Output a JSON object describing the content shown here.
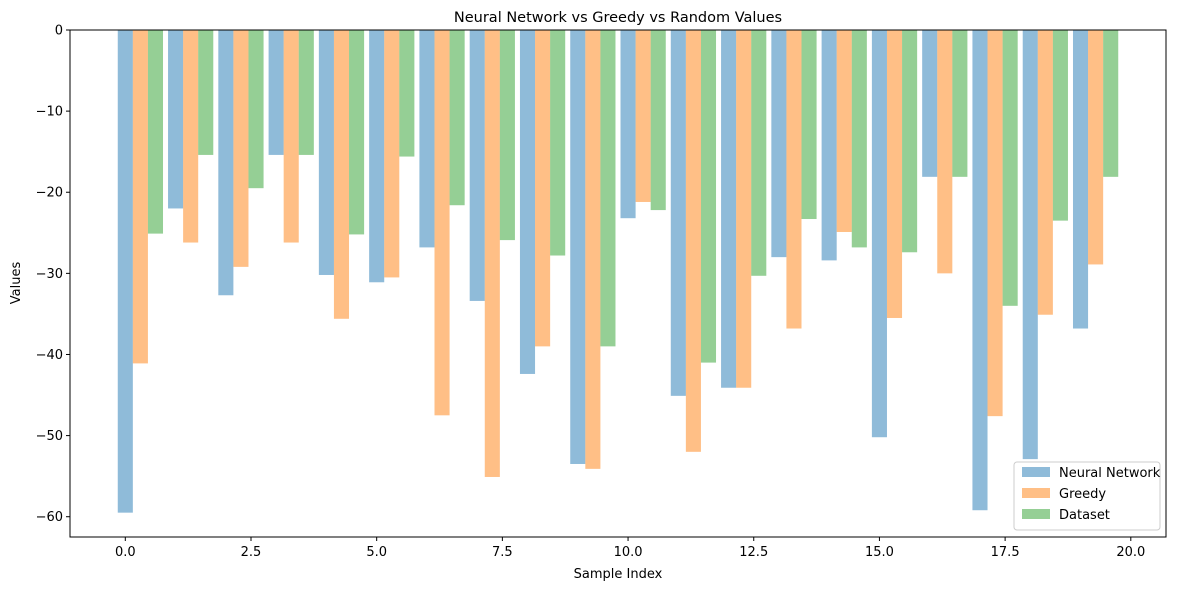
{
  "chart_data": {
    "type": "bar",
    "title": "Neural Network vs Greedy vs Random Values",
    "xlabel": "Sample Index",
    "ylabel": "Values",
    "x": [
      0,
      1,
      2,
      3,
      4,
      5,
      6,
      7,
      8,
      9,
      10,
      11,
      12,
      13,
      14,
      15,
      16,
      17,
      18,
      19
    ],
    "xlim": [
      -1.1,
      20.7
    ],
    "ylim": [
      -62.5,
      0
    ],
    "xticks": [
      0,
      2.5,
      5,
      7.5,
      10,
      12.5,
      15,
      17.5,
      20
    ],
    "xtick_labels": [
      "0.0",
      "2.5",
      "5.0",
      "7.5",
      "10.0",
      "12.5",
      "15.0",
      "17.5",
      "20.0"
    ],
    "yticks": [
      0,
      -10,
      -20,
      -30,
      -40,
      -50,
      -60
    ],
    "ytick_labels": [
      "0",
      "−10",
      "−20",
      "−30",
      "−40",
      "−50",
      "−60"
    ],
    "bar_width": 0.3,
    "grid": false,
    "legend_position": "lower-right",
    "series": [
      {
        "name": "Neural Network",
        "color": "#1f77b4",
        "offset": 0,
        "values": [
          -59.5,
          -22.0,
          -32.7,
          -15.4,
          -30.2,
          -31.1,
          -26.8,
          -33.4,
          -42.4,
          -53.5,
          -23.2,
          -45.1,
          -44.1,
          -28.0,
          -28.4,
          -50.2,
          -18.1,
          -59.2,
          -52.9,
          -36.8
        ]
      },
      {
        "name": "Greedy",
        "color": "#ff7f0e",
        "offset": 0.3,
        "values": [
          -41.1,
          -26.2,
          -29.2,
          -26.2,
          -35.6,
          -30.5,
          -47.5,
          -55.1,
          -39.0,
          -54.1,
          -21.2,
          -52.0,
          -44.1,
          -36.8,
          -24.9,
          -35.5,
          -30.0,
          -47.6,
          -35.1,
          -28.9
        ]
      },
      {
        "name": "Dataset",
        "color": "#2ca02c",
        "offset": 0.6,
        "values": [
          -25.1,
          -15.4,
          -19.5,
          -15.4,
          -25.2,
          -15.6,
          -21.6,
          -25.9,
          -27.8,
          -39.0,
          -22.2,
          -41.0,
          -30.3,
          -23.3,
          -26.8,
          -27.4,
          -18.1,
          -34.0,
          -23.5,
          -18.1
        ]
      }
    ]
  }
}
